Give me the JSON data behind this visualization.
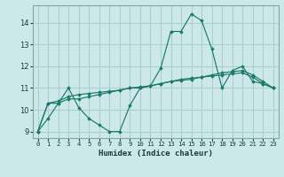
{
  "xlabel": "Humidex (Indice chaleur)",
  "ylabel": "",
  "xlim": [
    -0.5,
    23.5
  ],
  "ylim": [
    8.7,
    14.8
  ],
  "bg_color": "#cce8e8",
  "grid_color": "#aad0d0",
  "line_color": "#1a7a6a",
  "line1": [
    9.0,
    9.6,
    10.3,
    11.0,
    10.1,
    9.6,
    9.3,
    9.0,
    9.0,
    10.2,
    11.0,
    11.1,
    11.9,
    13.6,
    13.6,
    14.4,
    14.1,
    12.8,
    11.0,
    11.8,
    12.0,
    11.3,
    11.2,
    11.0
  ],
  "line2": [
    9.0,
    10.3,
    10.3,
    10.5,
    10.5,
    10.6,
    10.7,
    10.8,
    10.9,
    11.0,
    11.0,
    11.1,
    11.2,
    11.3,
    11.35,
    11.4,
    11.5,
    11.6,
    11.7,
    11.75,
    11.8,
    11.6,
    11.3,
    11.0
  ],
  "line3": [
    9.0,
    10.3,
    10.4,
    10.6,
    10.7,
    10.75,
    10.8,
    10.85,
    10.9,
    11.0,
    11.05,
    11.1,
    11.2,
    11.3,
    11.4,
    11.45,
    11.5,
    11.55,
    11.6,
    11.65,
    11.7,
    11.5,
    11.2,
    11.0
  ],
  "xtick_labels": [
    "0",
    "1",
    "2",
    "3",
    "4",
    "5",
    "6",
    "7",
    "8",
    "9",
    "10",
    "11",
    "12",
    "13",
    "14",
    "15",
    "16",
    "17",
    "18",
    "19",
    "20",
    "21",
    "22",
    "23"
  ],
  "ytick_labels": [
    "9",
    "10",
    "11",
    "12",
    "13",
    "14"
  ],
  "ytick_values": [
    9,
    10,
    11,
    12,
    13,
    14
  ],
  "xlabel_fontsize": 6.5,
  "xtick_fontsize": 5.2,
  "ytick_fontsize": 6.0
}
